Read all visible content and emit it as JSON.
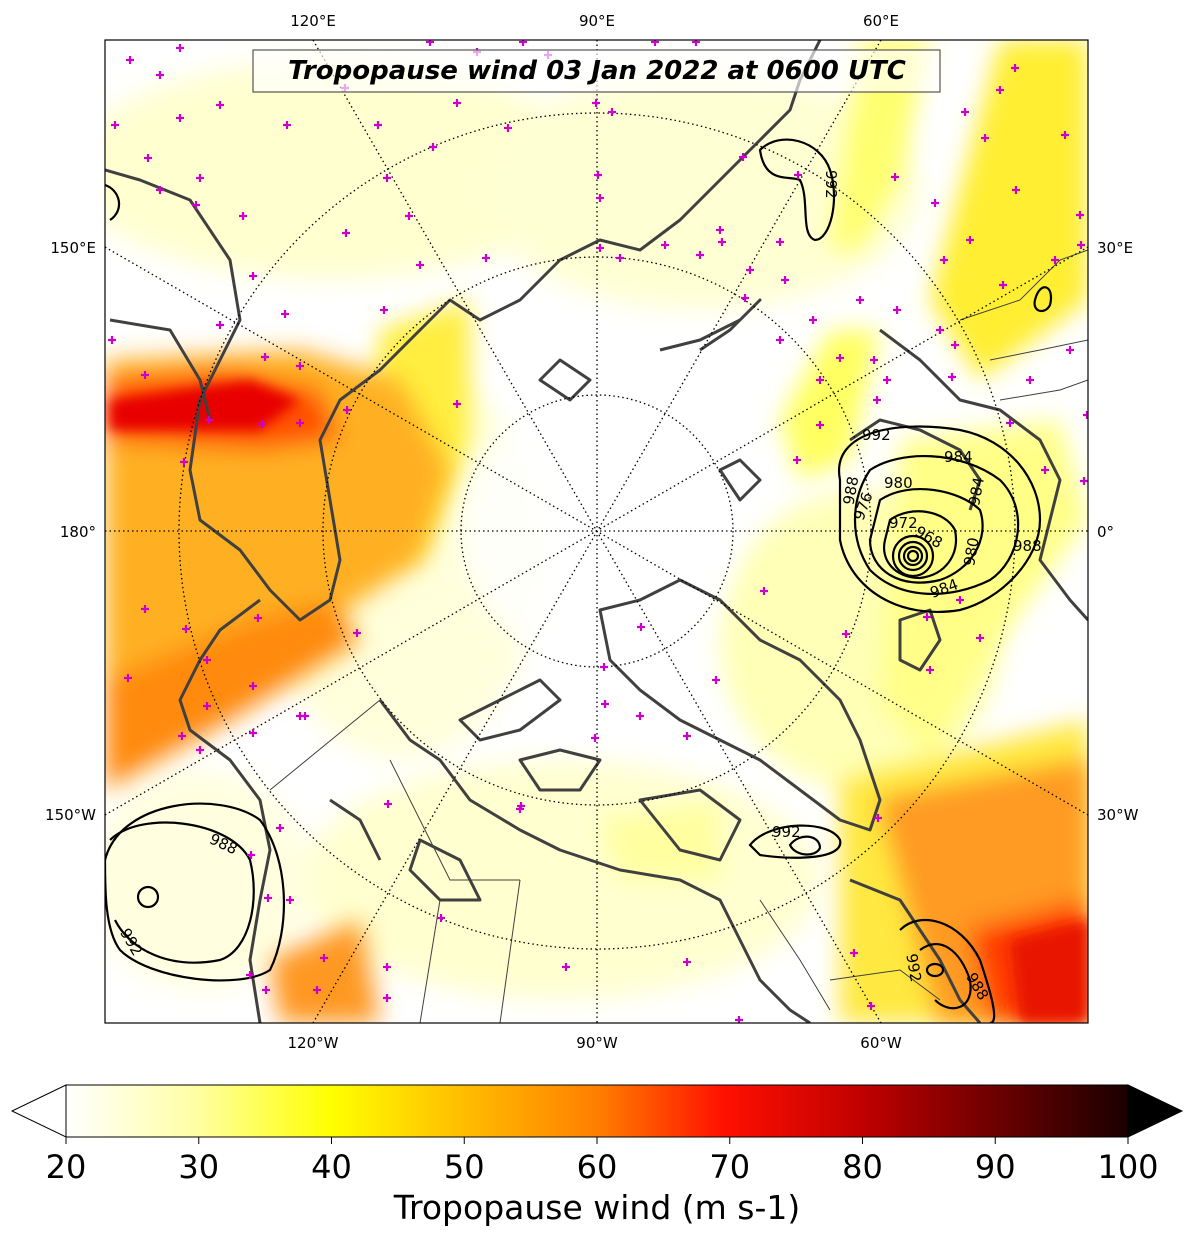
{
  "title": "Tropopause wind 03 Jan 2022 at 0600 UTC",
  "map": {
    "projection": "north-polar-stereographic",
    "top_lon_labels": [
      "120°E",
      "90°E",
      "60°E"
    ],
    "bottom_lon_labels": [
      "120°W",
      "90°W",
      "60°W"
    ],
    "left_lon_labels": [
      "150°E",
      "180°",
      "150°W"
    ],
    "right_lon_labels": [
      "30°E",
      "0°",
      "30°W"
    ],
    "pressure_contour_labels": [
      "992",
      "992",
      "988",
      "980",
      "984",
      "972",
      "968",
      "976",
      "984",
      "980",
      "988",
      "984",
      "992",
      "988",
      "992",
      "992",
      "988"
    ],
    "wind_colormap": "hot_r",
    "station_marker_color": "#cc00cc",
    "coastline_color": "#404040",
    "contour_color": "#000000"
  },
  "colorbar": {
    "title": "Tropopause wind (m s-1)",
    "tick_labels": [
      "20",
      "30",
      "40",
      "50",
      "60",
      "70",
      "80",
      "90",
      "100"
    ],
    "min": 20,
    "max": 100,
    "extend": "both"
  }
}
